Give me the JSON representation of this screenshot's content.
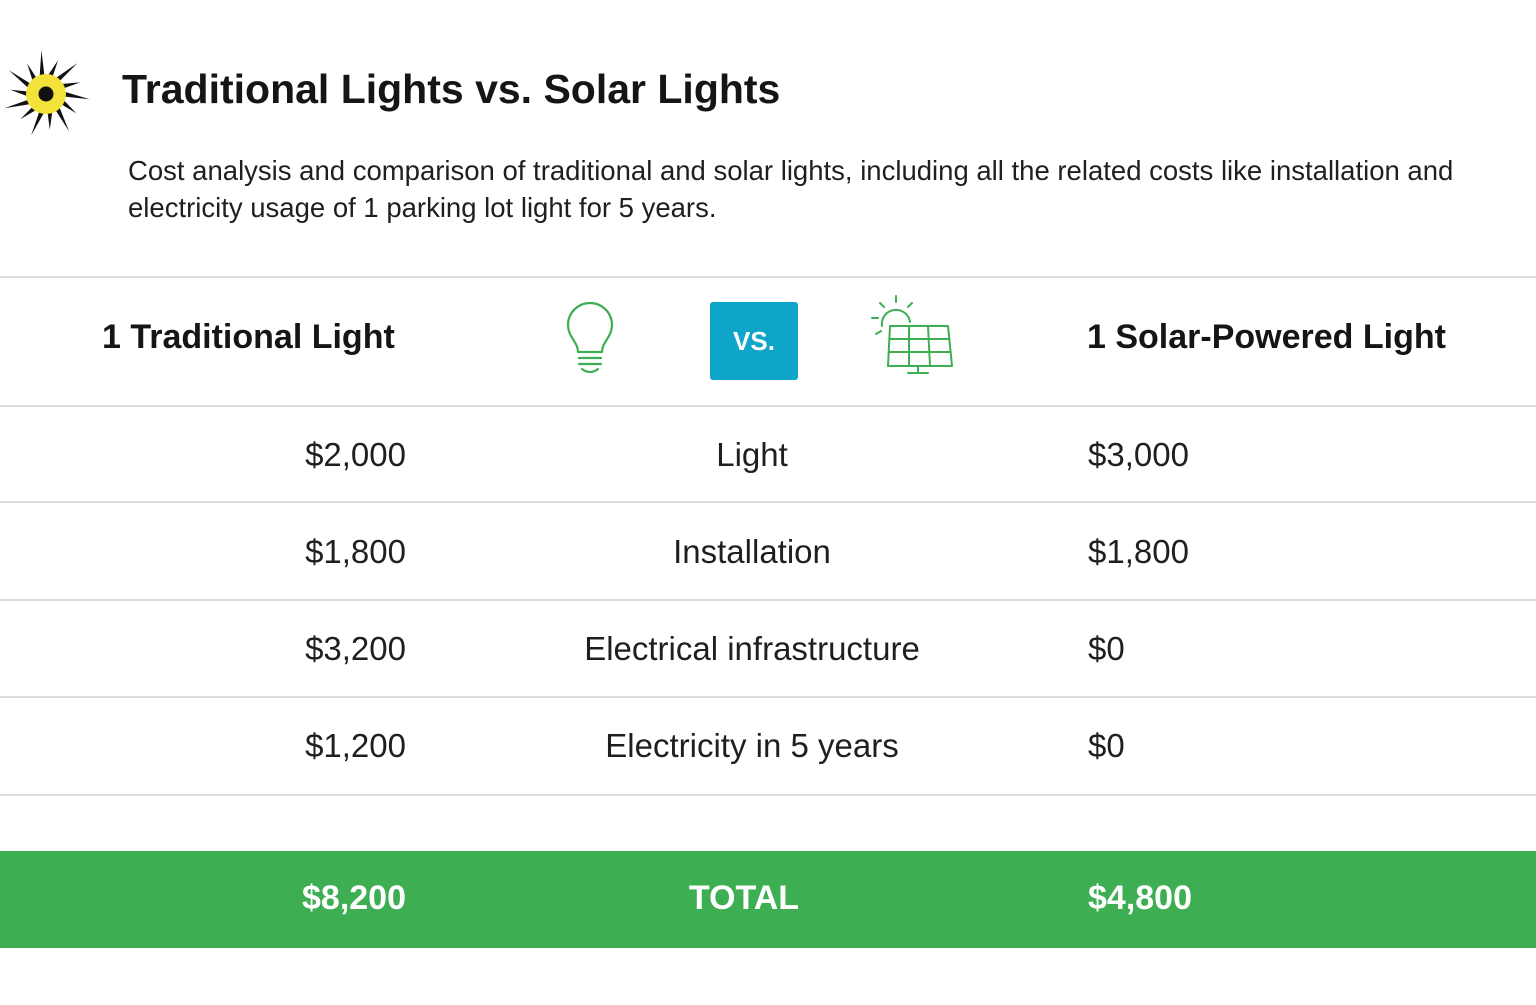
{
  "header": {
    "title": "Traditional Lights vs. Solar Lights",
    "subtitle": "Cost analysis and comparison of traditional and solar lights, including all the related costs like installation and electricity usage of 1 parking lot light for 5 years.",
    "logo_icon": "sun-logo-icon"
  },
  "columns": {
    "traditional": "1 Traditional Light",
    "vs": "VS.",
    "solar": "1 Solar-Powered Light",
    "traditional_icon": "light-bulb-icon",
    "solar_icon": "solar-panel-icon"
  },
  "rows": [
    {
      "traditional": "$2,000",
      "item": "Light",
      "solar": "$3,000"
    },
    {
      "traditional": "$1,800",
      "item": "Installation",
      "solar": "$1,800"
    },
    {
      "traditional": "$3,200",
      "item": "Electrical infrastructure",
      "solar": "$0"
    },
    {
      "traditional": "$1,200",
      "item": "Electricity in 5 years",
      "solar": "$0"
    }
  ],
  "total": {
    "traditional": "$8,200",
    "label": "TOTAL",
    "solar": "$4,800"
  },
  "colors": {
    "accent_green": "#3daf52",
    "vs_badge": "#0ea5c9",
    "icon_green": "#3daf52",
    "logo_yellow": "#f3e23a"
  }
}
